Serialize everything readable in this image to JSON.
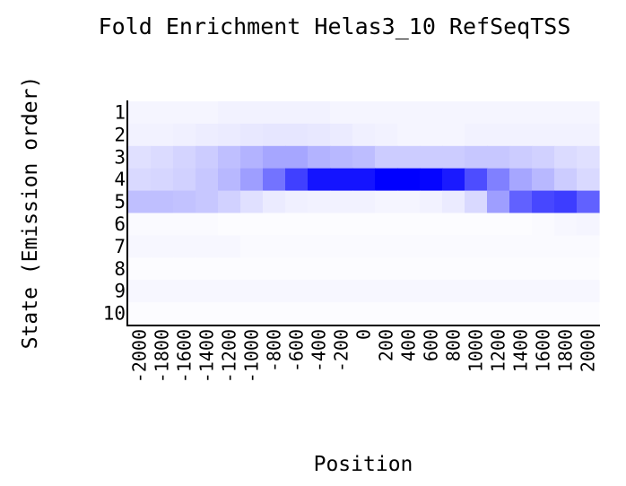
{
  "chart_data": {
    "type": "heatmap",
    "title": "Fold Enrichment Helas3_10 RefSeqTSS",
    "xlabel": "Position",
    "ylabel": "State (Emission order)",
    "x_categories": [
      "-2000",
      "-1800",
      "-1600",
      "-1400",
      "-1200",
      "-1000",
      "-800",
      "-600",
      "-400",
      "-200",
      "0",
      "200",
      "400",
      "600",
      "800",
      "1000",
      "1200",
      "1400",
      "1600",
      "1800",
      "2000"
    ],
    "y_categories": [
      "1",
      "2",
      "3",
      "4",
      "5",
      "6",
      "7",
      "8",
      "9",
      "10"
    ],
    "color_low": "#ffffff",
    "color_high": "#0000ff",
    "values": [
      [
        0.04,
        0.04,
        0.04,
        0.04,
        0.05,
        0.05,
        0.05,
        0.05,
        0.05,
        0.04,
        0.04,
        0.04,
        0.04,
        0.04,
        0.04,
        0.04,
        0.04,
        0.04,
        0.04,
        0.04,
        0.04
      ],
      [
        0.05,
        0.05,
        0.06,
        0.07,
        0.08,
        0.09,
        0.1,
        0.1,
        0.09,
        0.08,
        0.06,
        0.05,
        0.04,
        0.04,
        0.04,
        0.05,
        0.05,
        0.05,
        0.05,
        0.05,
        0.05
      ],
      [
        0.12,
        0.14,
        0.17,
        0.2,
        0.25,
        0.3,
        0.35,
        0.35,
        0.3,
        0.28,
        0.26,
        0.2,
        0.2,
        0.2,
        0.2,
        0.22,
        0.22,
        0.2,
        0.18,
        0.14,
        0.12
      ],
      [
        0.15,
        0.16,
        0.18,
        0.22,
        0.28,
        0.38,
        0.55,
        0.75,
        0.92,
        0.92,
        0.92,
        1.0,
        1.0,
        0.98,
        0.9,
        0.7,
        0.5,
        0.35,
        0.28,
        0.2,
        0.15
      ],
      [
        0.25,
        0.25,
        0.24,
        0.22,
        0.18,
        0.12,
        0.08,
        0.06,
        0.05,
        0.05,
        0.05,
        0.04,
        0.04,
        0.05,
        0.08,
        0.15,
        0.38,
        0.62,
        0.72,
        0.76,
        0.62
      ],
      [
        0.02,
        0.02,
        0.02,
        0.02,
        0.01,
        0.01,
        0.01,
        0.01,
        0.01,
        0.01,
        0.01,
        0.01,
        0.01,
        0.01,
        0.01,
        0.01,
        0.01,
        0.01,
        0.02,
        0.03,
        0.04
      ],
      [
        0.03,
        0.03,
        0.03,
        0.03,
        0.03,
        0.02,
        0.02,
        0.02,
        0.02,
        0.02,
        0.02,
        0.02,
        0.02,
        0.02,
        0.02,
        0.02,
        0.02,
        0.02,
        0.02,
        0.02,
        0.02
      ],
      [
        0.01,
        0.01,
        0.01,
        0.01,
        0.01,
        0.01,
        0.01,
        0.01,
        0.01,
        0.01,
        0.01,
        0.01,
        0.01,
        0.01,
        0.01,
        0.01,
        0.01,
        0.01,
        0.01,
        0.01,
        0.01
      ],
      [
        0.03,
        0.03,
        0.03,
        0.03,
        0.03,
        0.03,
        0.03,
        0.03,
        0.03,
        0.03,
        0.03,
        0.03,
        0.03,
        0.03,
        0.03,
        0.03,
        0.03,
        0.03,
        0.03,
        0.03,
        0.03
      ],
      [
        0.01,
        0.01,
        0.01,
        0.01,
        0.01,
        0.01,
        0.01,
        0.01,
        0.01,
        0.01,
        0.01,
        0.01,
        0.01,
        0.01,
        0.01,
        0.01,
        0.01,
        0.01,
        0.01,
        0.01,
        0.01
      ]
    ]
  }
}
